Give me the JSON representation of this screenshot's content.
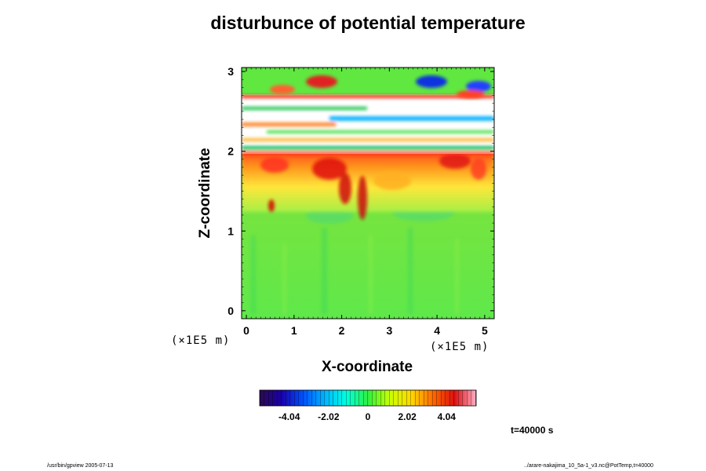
{
  "chart_data": {
    "type": "heatmap",
    "title": "disturbunce of potential temperature",
    "xlabel": "X-coordinate",
    "ylabel": "Z-coordinate",
    "x_unit": "(×1E5 m)",
    "y_unit": "(×1E5 m)",
    "x_ticks": [
      0,
      1,
      2,
      3,
      4,
      5
    ],
    "y_ticks": [
      0,
      1,
      2,
      3
    ],
    "xlim": [
      -0.1,
      5.2
    ],
    "ylim": [
      -0.1,
      3.05
    ],
    "colorbar": {
      "ticks": [
        -4.04,
        -2.02,
        0,
        2.02,
        4.04
      ],
      "tick_labels": [
        "-4.04",
        "-2.02",
        "0",
        "2.02",
        "4.04"
      ],
      "range": [
        -5.56,
        5.56
      ],
      "colors": [
        "#2a0b4c",
        "#0000c8",
        "#0080ff",
        "#00ffff",
        "#60ff60",
        "#00e000",
        "#ffff00",
        "#ffa000",
        "#ff2000",
        "#c00000",
        "#ff80c0"
      ]
    },
    "regions": [
      {
        "z_range": [
          0,
          1.3
        ],
        "value_range": [
          -0.5,
          0.3
        ],
        "description": "green"
      },
      {
        "z_range": [
          1.3,
          2.0
        ],
        "value_range": [
          0.5,
          4.0
        ],
        "description": "yellow-orange-red turbulent layer"
      },
      {
        "z_range": [
          2.0,
          2.75
        ],
        "value_range": [
          "out of range"
        ],
        "description": "white bands"
      },
      {
        "z_range": [
          2.75,
          3.0
        ],
        "value_range": [
          -4.0,
          4.0
        ],
        "description": "mixed"
      }
    ],
    "grid": false
  },
  "annotations": {
    "time": "t=40000 s",
    "footer_left": "/usr/bin/gpview 2005-07-13",
    "footer_right": "../arare-nakajima_10_5a-1_v3.nc@PotTemp,t=40000"
  }
}
